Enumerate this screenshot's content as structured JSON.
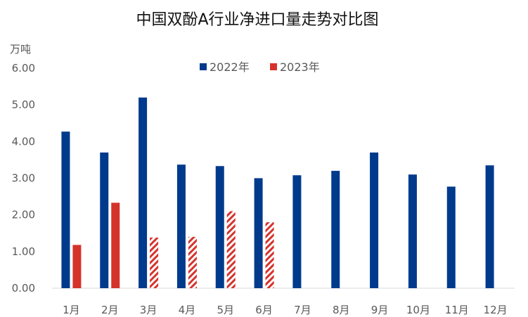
{
  "chart_data": {
    "type": "bar",
    "title": "中国双酚A行业净进口量走势对比图",
    "unit_label": "万吨",
    "ylim": [
      0,
      6
    ],
    "yticks": [
      "0.00",
      "1.00",
      "2.00",
      "3.00",
      "4.00",
      "5.00",
      "6.00"
    ],
    "grid": false,
    "legend_position": "top",
    "categories": [
      "1月",
      "2月",
      "3月",
      "4月",
      "5月",
      "6月",
      "7月",
      "8月",
      "9月",
      "10月",
      "11月",
      "12月"
    ],
    "series": [
      {
        "name": "2022年",
        "color": "#003A8C",
        "values": [
          4.27,
          3.7,
          5.2,
          3.37,
          3.33,
          3.0,
          3.08,
          3.2,
          3.7,
          3.1,
          2.77,
          3.35
        ]
      },
      {
        "name": "2023年",
        "color": "#D5322C",
        "values": [
          1.18,
          2.33,
          1.38,
          1.4,
          2.1,
          1.8,
          null,
          null,
          null,
          null,
          null,
          null
        ],
        "hatched_from_index": 2
      }
    ]
  }
}
